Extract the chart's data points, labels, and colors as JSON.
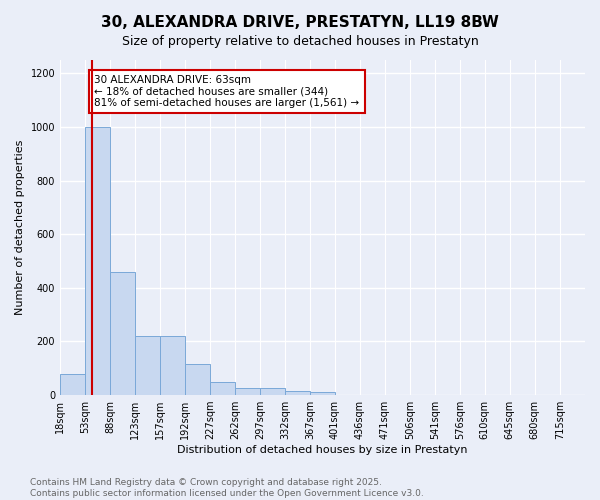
{
  "title": "30, ALEXANDRA DRIVE, PRESTATYN, LL19 8BW",
  "subtitle": "Size of property relative to detached houses in Prestatyn",
  "xlabel": "Distribution of detached houses by size in Prestatyn",
  "ylabel": "Number of detached properties",
  "bin_labels": [
    "18sqm",
    "53sqm",
    "88sqm",
    "123sqm",
    "157sqm",
    "192sqm",
    "227sqm",
    "262sqm",
    "297sqm",
    "332sqm",
    "367sqm",
    "401sqm",
    "436sqm",
    "471sqm",
    "506sqm",
    "541sqm",
    "576sqm",
    "610sqm",
    "645sqm",
    "680sqm",
    "715sqm"
  ],
  "bin_edges": [
    18,
    53,
    88,
    123,
    157,
    192,
    227,
    262,
    297,
    332,
    367,
    401,
    436,
    471,
    506,
    541,
    576,
    610,
    645,
    680,
    715
  ],
  "bar_heights": [
    80,
    1000,
    460,
    220,
    220,
    115,
    50,
    25,
    25,
    15,
    10,
    0,
    0,
    0,
    0,
    0,
    0,
    0,
    0,
    0
  ],
  "bar_color": "#c8d8f0",
  "bar_edge_color": "#7aa8d8",
  "red_line_x": 63,
  "red_line_color": "#cc0000",
  "annotation_text": "30 ALEXANDRA DRIVE: 63sqm\n← 18% of detached houses are smaller (344)\n81% of semi-detached houses are larger (1,561) →",
  "annotation_box_color": "#ffffff",
  "annotation_box_edge": "#cc0000",
  "ylim": [
    0,
    1250
  ],
  "yticks": [
    0,
    200,
    400,
    600,
    800,
    1000,
    1200
  ],
  "footer_text": "Contains HM Land Registry data © Crown copyright and database right 2025.\nContains public sector information licensed under the Open Government Licence v3.0.",
  "bg_color": "#eaeef8",
  "plot_bg_color": "#eaeef8",
  "grid_color": "#ffffff",
  "title_fontsize": 11,
  "subtitle_fontsize": 9,
  "axis_label_fontsize": 8,
  "tick_fontsize": 7,
  "annotation_fontsize": 7.5,
  "footer_fontsize": 6.5
}
